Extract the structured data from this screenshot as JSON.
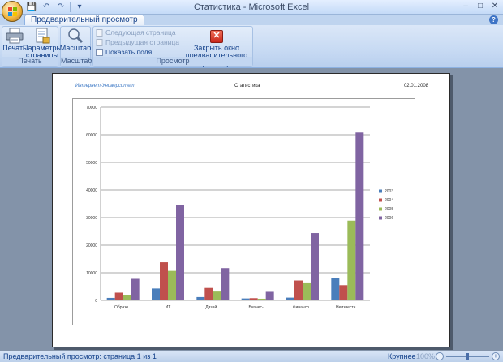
{
  "window": {
    "title": "Статистика - Microsoft Excel",
    "qat_save": "💾",
    "qat_undo": "↶",
    "qat_redo": "↷",
    "qat_more": "▾",
    "min": "–",
    "max": "□",
    "close": "✕"
  },
  "ribbon": {
    "active_tab": "Предварительный просмотр",
    "help": "?",
    "groups": {
      "print": {
        "label": "Печать",
        "print_btn": "Печать",
        "page_setup_btn_line1": "Параметры",
        "page_setup_btn_line2": "страницы"
      },
      "zoom": {
        "label": "Масштаб",
        "zoom_btn": "Масштаб"
      },
      "preview": {
        "label": "Просмотр",
        "next_page": "Следующая страница",
        "prev_page": "Предыдущая страница",
        "show_margins": "Показать поля",
        "close_line1": "Закрыть окно",
        "close_line2": "предварительного просмотра"
      }
    }
  },
  "page": {
    "header_left": "Интернет-Университет",
    "header_center": "Статистика",
    "header_right": "02.01.2008"
  },
  "chart_data": {
    "type": "bar",
    "categories": [
      "Образо...",
      "ИТ",
      "Дизай...",
      "Бизнес-...",
      "Финансо...",
      "Неизвестн..."
    ],
    "series": [
      {
        "name": "2003",
        "values": [
          900,
          4300,
          1200,
          700,
          1000,
          8000
        ]
      },
      {
        "name": "2004",
        "values": [
          2800,
          13800,
          4500,
          800,
          7200,
          5500
        ]
      },
      {
        "name": "2005",
        "values": [
          2000,
          10700,
          3200,
          600,
          6200,
          28900
        ]
      },
      {
        "name": "2006",
        "values": [
          7800,
          34500,
          11700,
          3100,
          24400,
          60800
        ]
      }
    ],
    "ylim": [
      0,
      70000
    ],
    "yticks": [
      "0",
      "10000",
      "20000",
      "30000",
      "40000",
      "50000",
      "60000",
      "70000"
    ],
    "colors": [
      "#4a7ebb",
      "#c0504d",
      "#9bbb59",
      "#8064a2"
    ],
    "grid": true,
    "legend": "right"
  },
  "status": {
    "text": "Предварительный просмотр: страница 1 из 1",
    "zoom_label": "Крупнее",
    "zoom_pct": "100%",
    "zoom_minus": "−",
    "zoom_plus": "+"
  }
}
